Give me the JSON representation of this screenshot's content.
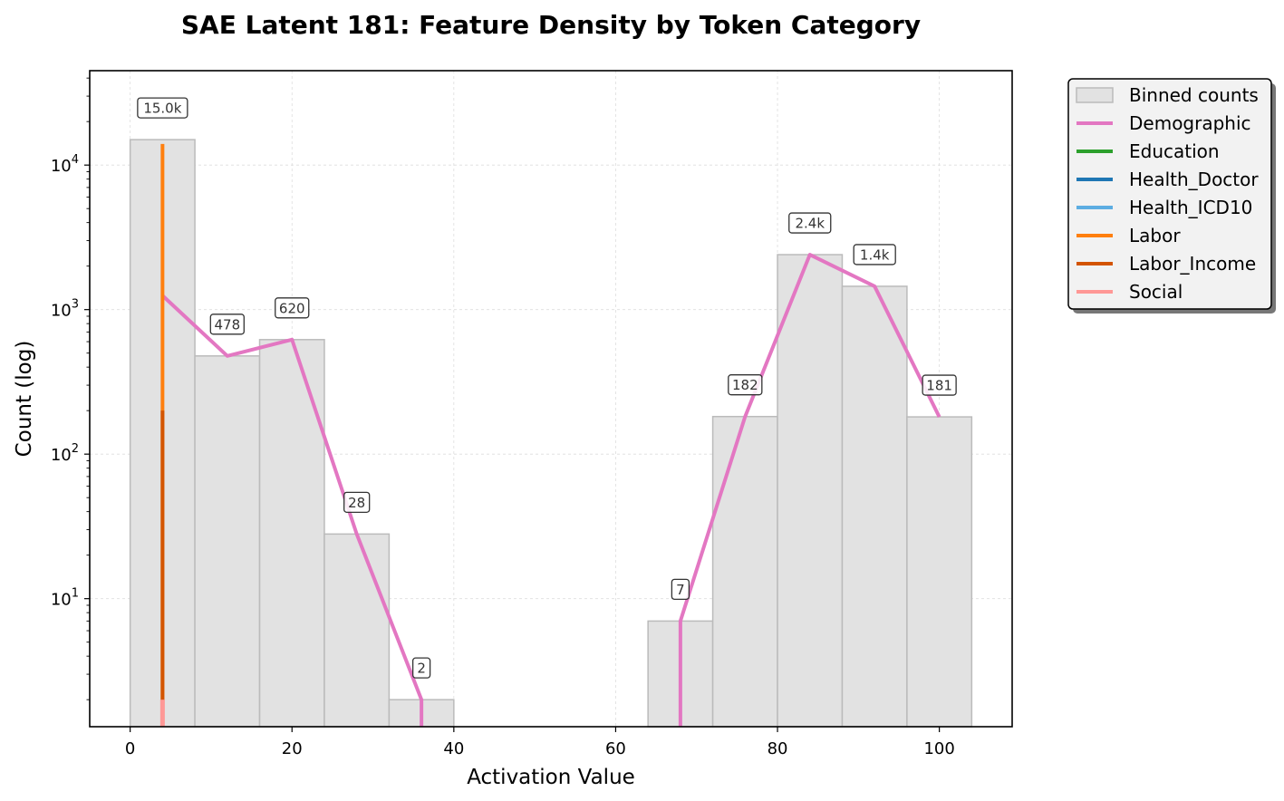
{
  "chart_data": {
    "type": "bar",
    "title": "SAE Latent 181: Feature Density by Token Category",
    "xlabel": "Activation Value",
    "ylabel": "Count (log)",
    "xlim": [
      -5,
      109
    ],
    "ylim": [
      1.3,
      45000
    ],
    "yscale": "log",
    "grid": true,
    "legend_position": "outside right, top",
    "x_ticks": [
      0,
      20,
      40,
      60,
      80,
      100
    ],
    "y_ticks": [
      {
        "value": 10,
        "base": "10",
        "exp": "1"
      },
      {
        "value": 100,
        "base": "10",
        "exp": "2"
      },
      {
        "value": 1000,
        "base": "10",
        "exp": "3"
      },
      {
        "value": 10000,
        "base": "10",
        "exp": "4"
      }
    ],
    "bins": [
      {
        "x0": 0,
        "x1": 8,
        "count": 15000,
        "label": "15.0k"
      },
      {
        "x0": 8,
        "x1": 16,
        "count": 478,
        "label": "478"
      },
      {
        "x0": 16,
        "x1": 24,
        "count": 620,
        "label": "620"
      },
      {
        "x0": 24,
        "x1": 32,
        "count": 28,
        "label": "28"
      },
      {
        "x0": 32,
        "x1": 40,
        "count": 2,
        "label": "2"
      },
      {
        "x0": 40,
        "x1": 48,
        "count": 0,
        "label": ""
      },
      {
        "x0": 48,
        "x1": 56,
        "count": 0,
        "label": ""
      },
      {
        "x0": 56,
        "x1": 64,
        "count": 0,
        "label": ""
      },
      {
        "x0": 64,
        "x1": 72,
        "count": 7,
        "label": "7"
      },
      {
        "x0": 72,
        "x1": 80,
        "count": 182,
        "label": "182"
      },
      {
        "x0": 80,
        "x1": 88,
        "count": 2400,
        "label": "2.4k"
      },
      {
        "x0": 88,
        "x1": 96,
        "count": 1450,
        "label": "1.4k"
      },
      {
        "x0": 96,
        "x1": 104,
        "count": 181,
        "label": "181"
      }
    ],
    "series": [
      {
        "name": "Demographic",
        "color": "#e377c2",
        "x": [
          4,
          12,
          20,
          28,
          36,
          44,
          52,
          60,
          68,
          76,
          84,
          92,
          100
        ],
        "values": [
          1250,
          478,
          620,
          28,
          2,
          0,
          0,
          0,
          7,
          182,
          2400,
          1450,
          181
        ]
      },
      {
        "name": "Education",
        "color": "#2ca02c",
        "x": [
          4
        ],
        "values": [
          0
        ]
      },
      {
        "name": "Health_Doctor",
        "color": "#1f77b4",
        "x": [
          4
        ],
        "values": [
          0
        ]
      },
      {
        "name": "Health_ICD10",
        "color": "#5dade2",
        "x": [
          4
        ],
        "values": [
          0
        ]
      },
      {
        "name": "Labor",
        "color": "#ff7f0e",
        "x": [
          4
        ],
        "values": [
          14000
        ]
      },
      {
        "name": "Labor_Income",
        "color": "#d35400",
        "x": [
          4
        ],
        "values": [
          200
        ]
      },
      {
        "name": "Social",
        "color": "#ff9896",
        "x": [
          4
        ],
        "values": [
          2
        ]
      }
    ],
    "legend": [
      {
        "label": "Binned counts",
        "kind": "patch",
        "color": "#e2e2e2"
      },
      {
        "label": "Demographic",
        "kind": "line",
        "color": "#e377c2"
      },
      {
        "label": "Education",
        "kind": "line",
        "color": "#2ca02c"
      },
      {
        "label": "Health_Doctor",
        "kind": "line",
        "color": "#1f77b4"
      },
      {
        "label": "Health_ICD10",
        "kind": "line",
        "color": "#5dade2"
      },
      {
        "label": "Labor",
        "kind": "line",
        "color": "#ff7f0e"
      },
      {
        "label": "Labor_Income",
        "kind": "line",
        "color": "#d35400"
      },
      {
        "label": "Social",
        "kind": "line",
        "color": "#ff9896"
      }
    ]
  }
}
